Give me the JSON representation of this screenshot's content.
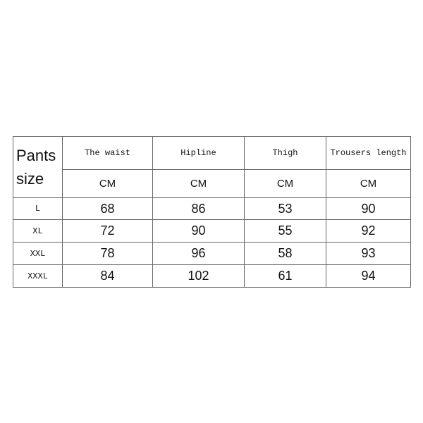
{
  "table": {
    "corner": "Pants size",
    "columns": [
      {
        "name": "The waist",
        "unit": "CM"
      },
      {
        "name": "Hipline",
        "unit": "CM"
      },
      {
        "name": "Thigh",
        "unit": "CM"
      },
      {
        "name": "Trousers length",
        "unit": "CM"
      }
    ],
    "rows": [
      [
        "L",
        68,
        86,
        53,
        90
      ],
      [
        "XL",
        72,
        90,
        55,
        92
      ],
      [
        "XXL",
        78,
        96,
        58,
        93
      ],
      [
        "XXXL",
        84,
        102,
        61,
        94
      ]
    ]
  }
}
